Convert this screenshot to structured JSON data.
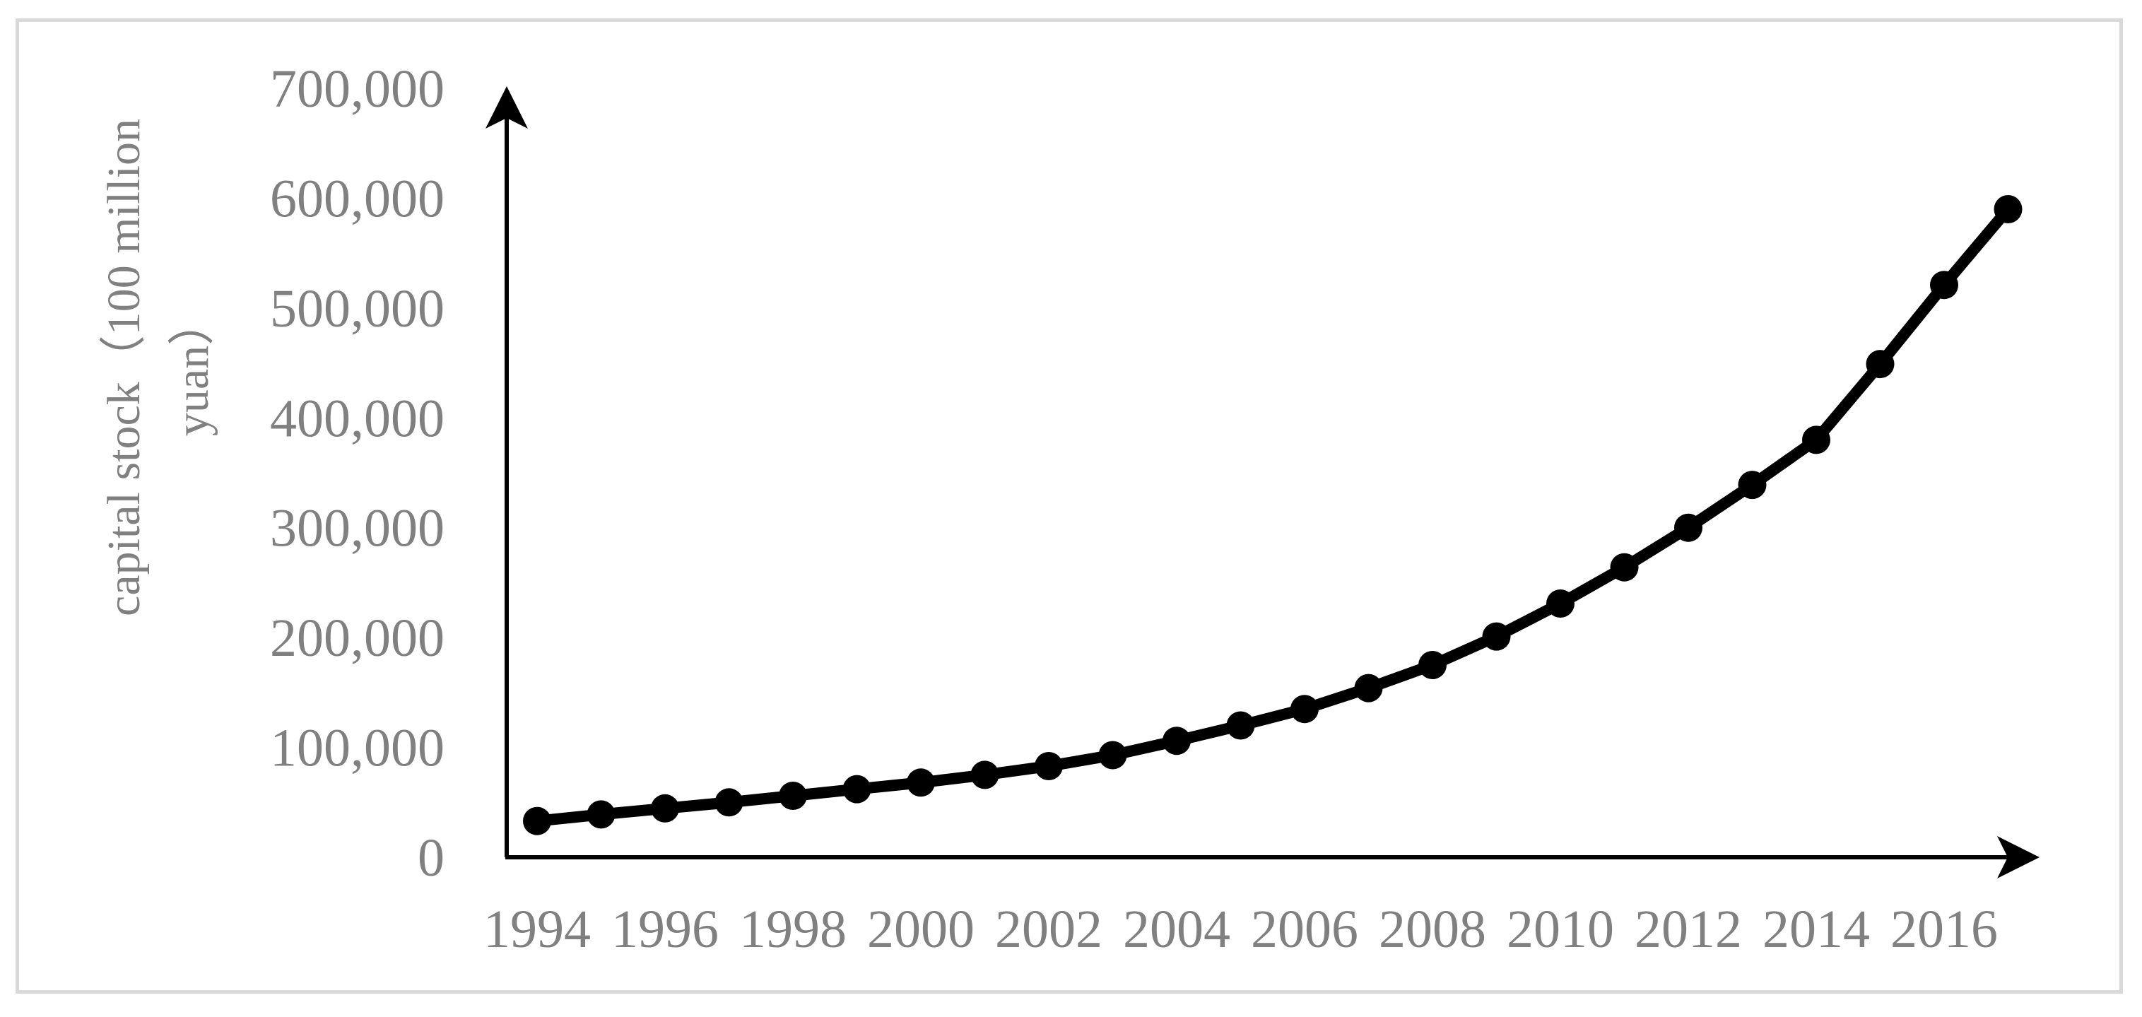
{
  "chart_data": {
    "type": "line",
    "title": "",
    "xlabel": "",
    "ylabel_lines": [
      "capital stock（100 million",
      "yuan）"
    ],
    "x": [
      1994,
      1995,
      1996,
      1997,
      1998,
      1999,
      2000,
      2001,
      2002,
      2003,
      2004,
      2005,
      2006,
      2007,
      2008,
      2009,
      2010,
      2011,
      2012,
      2013,
      2014,
      2015,
      2016,
      2017
    ],
    "x_tick_labels": [
      "1994",
      "1996",
      "1998",
      "2000",
      "2002",
      "2004",
      "2006",
      "2008",
      "2010",
      "2012",
      "2014",
      "2016"
    ],
    "y_tick_labels": [
      "0",
      "100,000",
      "200,000",
      "300,000",
      "400,000",
      "500,000",
      "600,000",
      "700,000"
    ],
    "ylim": [
      0,
      700000
    ],
    "grid": false,
    "legend": "none",
    "series": [
      {
        "values": [
          33000,
          39000,
          44500,
          50000,
          56000,
          62000,
          68000,
          75000,
          83000,
          93000,
          106000,
          120000,
          135000,
          154000,
          175000,
          201000,
          231000,
          264000,
          300000,
          339000,
          380000,
          449000,
          521000,
          590000
        ],
        "color": "#000000",
        "marker": "circle"
      }
    ]
  }
}
